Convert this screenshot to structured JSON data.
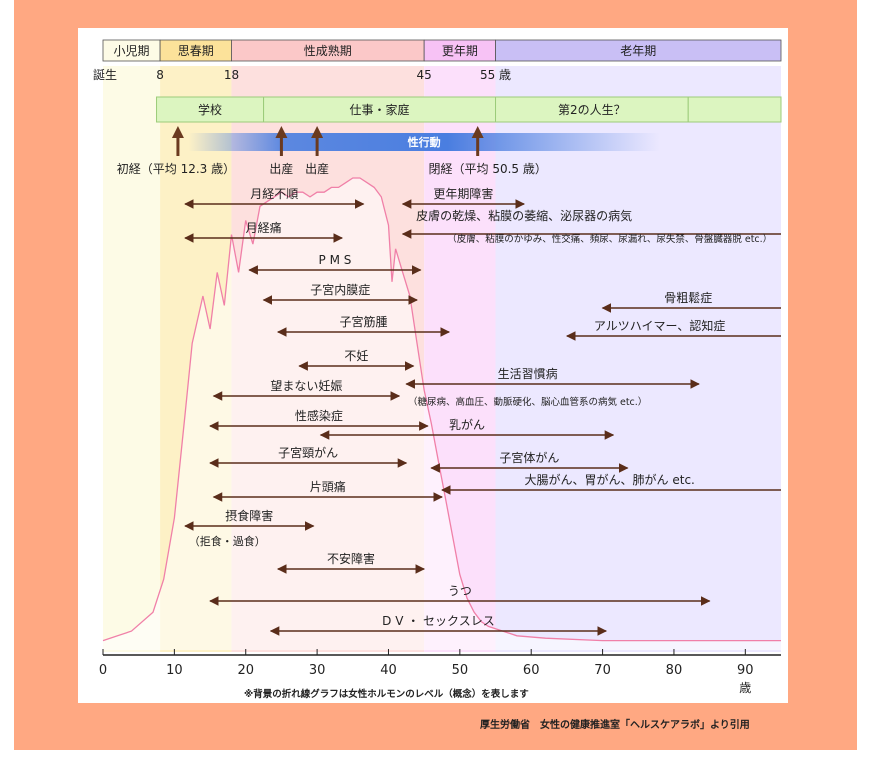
{
  "credit": "厚生労働省　女性の健康推進室「ヘルスケアラボ」より引用",
  "colors": {
    "frame": "#ffa882",
    "child": "#fdfbe6",
    "puberty": "#fdf1c6",
    "mature": "#fde0de",
    "menopause": "#fce0fb",
    "old": "#ece8ff",
    "hormone": "#f080a8",
    "life_bar": "#dcf5c0",
    "sex_bar": "#4a7ee0"
  },
  "chart_data": {
    "type": "area",
    "title": "",
    "xlabel": "歳",
    "ylabel": "",
    "xlim": [
      0,
      95
    ],
    "x_ticks": [
      "0",
      "10",
      "20",
      "30",
      "40",
      "50",
      "60",
      "70",
      "80",
      "90"
    ],
    "x_tick_values": [
      0,
      10,
      20,
      30,
      40,
      50,
      60,
      70,
      80,
      90
    ],
    "unit_label": "歳",
    "footnote": "※背景の折れ線グラフは女性ホルモンのレベル（概念）を表します",
    "stages": [
      {
        "label": "小児期",
        "start": 0,
        "end": 8,
        "color": "#fdfbe6",
        "header": "#fdfbe6"
      },
      {
        "label": "思春期",
        "start": 8,
        "end": 18,
        "color": "#fdf1c6",
        "header": "#fce29a"
      },
      {
        "label": "性成熟期",
        "start": 18,
        "end": 45,
        "color": "#fde0de",
        "header": "#fbc8c8"
      },
      {
        "label": "更年期",
        "start": 45,
        "end": 55,
        "color": "#fce0fb",
        "header": "#f7c2f5"
      },
      {
        "label": "老年期",
        "start": 55,
        "end": 95,
        "color": "#ece8ff",
        "header": "#c9bff5"
      }
    ],
    "milestones": [
      {
        "label": "誕生",
        "age": 0
      },
      {
        "label": "8",
        "age": 8
      },
      {
        "label": "18",
        "age": 18
      },
      {
        "label": "45",
        "age": 45
      },
      {
        "label": "55 歳",
        "age": 55
      }
    ],
    "life_phases": [
      {
        "label": "学校",
        "start": 7.5,
        "end": 22.5
      },
      {
        "label": "仕事・家庭",
        "start": 22.5,
        "end": 55
      },
      {
        "label": "第2の人生？",
        "start": 55,
        "end": 82
      },
      {
        "label": "",
        "start": 82,
        "end": 95
      }
    ],
    "sexual_activity": {
      "label": "性行動",
      "start": 12,
      "end": 78
    },
    "events": [
      {
        "label": "初経（平均 12.3 歳）",
        "age": 10.5
      },
      {
        "label": "出産",
        "age": 25
      },
      {
        "label": "出産",
        "age": 30
      },
      {
        "label": "閉経（平均 50.5 歳）",
        "age": 52.5
      }
    ],
    "hormone_level": {
      "ages": [
        0,
        4,
        7,
        8.5,
        10,
        11.5,
        12.5,
        14,
        15,
        16,
        17,
        18,
        19,
        20,
        21,
        22,
        23,
        24,
        25,
        26,
        27,
        28,
        29,
        30,
        31,
        32,
        33,
        34,
        35,
        36,
        37,
        38,
        39,
        40,
        40.5,
        41,
        42,
        43,
        44,
        45,
        46,
        47,
        48,
        49,
        50,
        51,
        52,
        53,
        54,
        56,
        58,
        62,
        70,
        80,
        95
      ],
      "levels": [
        2,
        4,
        8,
        15,
        28,
        50,
        65,
        75,
        68,
        80,
        73,
        88,
        80,
        91,
        86,
        94,
        95,
        96,
        97,
        96,
        97,
        97,
        96,
        97,
        97,
        98,
        98,
        99,
        100,
        100,
        99,
        98,
        96,
        90,
        78,
        85,
        80,
        75,
        65,
        55,
        48,
        40,
        32,
        24,
        16,
        11,
        8,
        6,
        5,
        4,
        3,
        2.5,
        2,
        2,
        2
      ]
    },
    "conditions": [
      {
        "label": "月経不順",
        "start": 11.5,
        "end": 36.5,
        "dir": "both",
        "note": ""
      },
      {
        "label": "更年期障害",
        "start": 42,
        "end": 59,
        "dir": "both",
        "note": ""
      },
      {
        "label": "皮膚の乾燥、粘膜の萎縮、泌尿器の病気",
        "start": 42,
        "end": 95,
        "dir": "left",
        "note": "（皮膚、粘膜のかゆみ、性交痛、頻尿、尿漏れ、尿失禁、骨盤臓器脱 etc.）"
      },
      {
        "label": "月経痛",
        "start": 11.5,
        "end": 33.5,
        "dir": "both",
        "note": ""
      },
      {
        "label": "P M S",
        "start": 20.5,
        "end": 44.5,
        "dir": "both",
        "note": ""
      },
      {
        "label": "子宮内膜症",
        "start": 22.5,
        "end": 44,
        "dir": "both",
        "note": ""
      },
      {
        "label": "骨粗鬆症",
        "start": 70,
        "end": 95,
        "dir": "left",
        "note": ""
      },
      {
        "label": "子宮筋腫",
        "start": 24.5,
        "end": 48.5,
        "dir": "both",
        "note": ""
      },
      {
        "label": "アルツハイマー、認知症",
        "start": 65,
        "end": 95,
        "dir": "left",
        "note": ""
      },
      {
        "label": "不妊",
        "start": 27.5,
        "end": 43.5,
        "dir": "both",
        "note": ""
      },
      {
        "label": "生活習慣病",
        "start": 42.5,
        "end": 83.5,
        "dir": "both",
        "note": "（糖尿病、高血圧、動脈硬化、脳心血管系の病気 etc.）"
      },
      {
        "label": "望まない妊娠",
        "start": 15.5,
        "end": 41.5,
        "dir": "both",
        "note": ""
      },
      {
        "label": "性感染症",
        "start": 15,
        "end": 45.5,
        "dir": "both",
        "note": ""
      },
      {
        "label": "乳がん",
        "start": 30.5,
        "end": 71.5,
        "dir": "both",
        "note": ""
      },
      {
        "label": "子宮頸がん",
        "start": 15,
        "end": 42.5,
        "dir": "both",
        "note": ""
      },
      {
        "label": "子宮体がん",
        "start": 46,
        "end": 73.5,
        "dir": "both",
        "note": ""
      },
      {
        "label": "大腸がん、胃がん、肺がん etc.",
        "start": 47.5,
        "end": 95,
        "dir": "left",
        "note": ""
      },
      {
        "label": "片頭痛",
        "start": 15.5,
        "end": 47.5,
        "dir": "both",
        "note": ""
      },
      {
        "label": "摂食障害",
        "start": 11.5,
        "end": 29.5,
        "dir": "both",
        "note": "（拒食・過食）"
      },
      {
        "label": "不安障害",
        "start": 24.5,
        "end": 45,
        "dir": "both",
        "note": ""
      },
      {
        "label": "うつ",
        "start": 15,
        "end": 85,
        "dir": "both",
        "note": ""
      },
      {
        "label": "D V ・ セックスレス",
        "start": 23.5,
        "end": 70.5,
        "dir": "both",
        "note": ""
      }
    ]
  }
}
